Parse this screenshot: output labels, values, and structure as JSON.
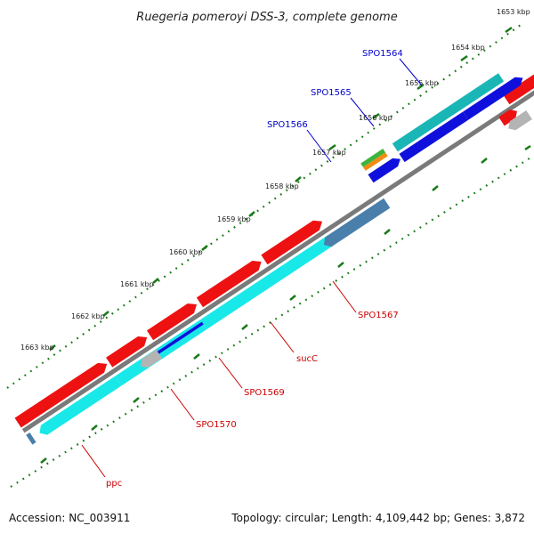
{
  "title": "Ruegeria pomeroyi DSS-3, complete genome",
  "footer": {
    "accession": "Accession: NC_003911",
    "summary": "Topology: circular; Length: 4,109,442 bp; Genes: 3,872"
  },
  "scale_labels": [
    "1653 kbp",
    "1654 kbp",
    "1655 kbp",
    "1656 kbp",
    "1657 kbp",
    "1658 kbp",
    "1659 kbp",
    "1660 kbp",
    "1661 kbp",
    "1662 kbp",
    "1663 kbp"
  ],
  "colors": {
    "backbone": "#7a7a7a",
    "forward_gene": "#ee1111",
    "reverse_cyan": "#19e8e8",
    "reverse_teal": "#1ab6b6",
    "reverse_blue": "#1010dd",
    "reverse_steel": "#4a7fab",
    "reverse_gray": "#b4b4b4",
    "green_feature": "#3cb43c",
    "orange_feature": "#f08c14",
    "tick": "#1a7a1a",
    "label_red": "#cc0000",
    "label_blue": "#0000cc"
  },
  "gene_labels": [
    {
      "text": "SPO1564",
      "color": "blue"
    },
    {
      "text": "SPO1565",
      "color": "blue"
    },
    {
      "text": "SPO1566",
      "color": "blue"
    },
    {
      "text": "SPO1567",
      "color": "red"
    },
    {
      "text": "sucC",
      "color": "red"
    },
    {
      "text": "SPO1569",
      "color": "red"
    },
    {
      "text": "SPO1570",
      "color": "red"
    },
    {
      "text": "ppc",
      "color": "red"
    }
  ]
}
